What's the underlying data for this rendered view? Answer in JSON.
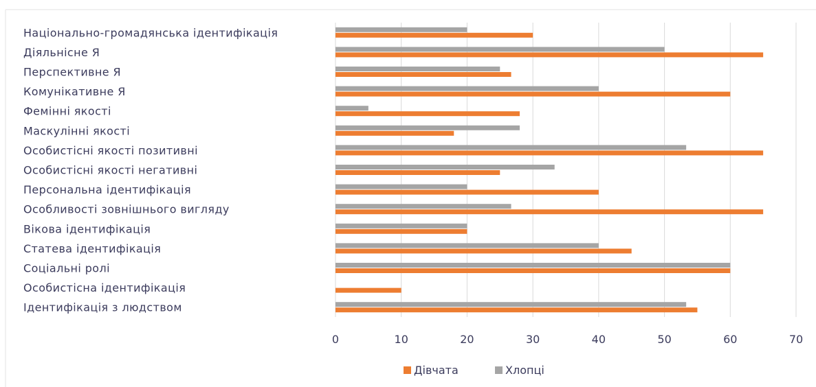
{
  "chart_data": {
    "type": "bar",
    "orientation": "horizontal",
    "categories": [
      "Національно-громадянська ідентифікація",
      "Діяльнісне Я",
      "Перспективне Я",
      "Комунікативне Я",
      "Фемінні якості",
      "Маскулінні якості",
      "Особистісні якості позитивні",
      "Особистісні якості негативні",
      "Персональна ідентифікація",
      "Особливості зовнішнього вигляду",
      "Вікова ідентифікація",
      "Статева ідентифікація",
      "Соціальні ролі",
      "Особистісна ідентифікація",
      "Ідентифікація з людством"
    ],
    "series": [
      {
        "name": "Дівчата",
        "color": "#ed7d31",
        "values": [
          30,
          65,
          26.7,
          60,
          28,
          18,
          65,
          25,
          40,
          65,
          20,
          45,
          60,
          10,
          55
        ]
      },
      {
        "name": "Хлопці",
        "color": "#a5a5a5",
        "values": [
          20,
          50,
          25,
          40,
          5,
          28,
          53.3,
          33.3,
          20,
          26.7,
          20,
          40,
          60,
          0,
          53.3
        ]
      }
    ],
    "xlim": [
      0,
      70
    ],
    "xticks": [
      "0",
      "10",
      "20",
      "30",
      "40",
      "50",
      "60",
      "70"
    ],
    "grid": true,
    "legend_position": "bottom",
    "title": "",
    "xlabel": "",
    "ylabel": ""
  }
}
